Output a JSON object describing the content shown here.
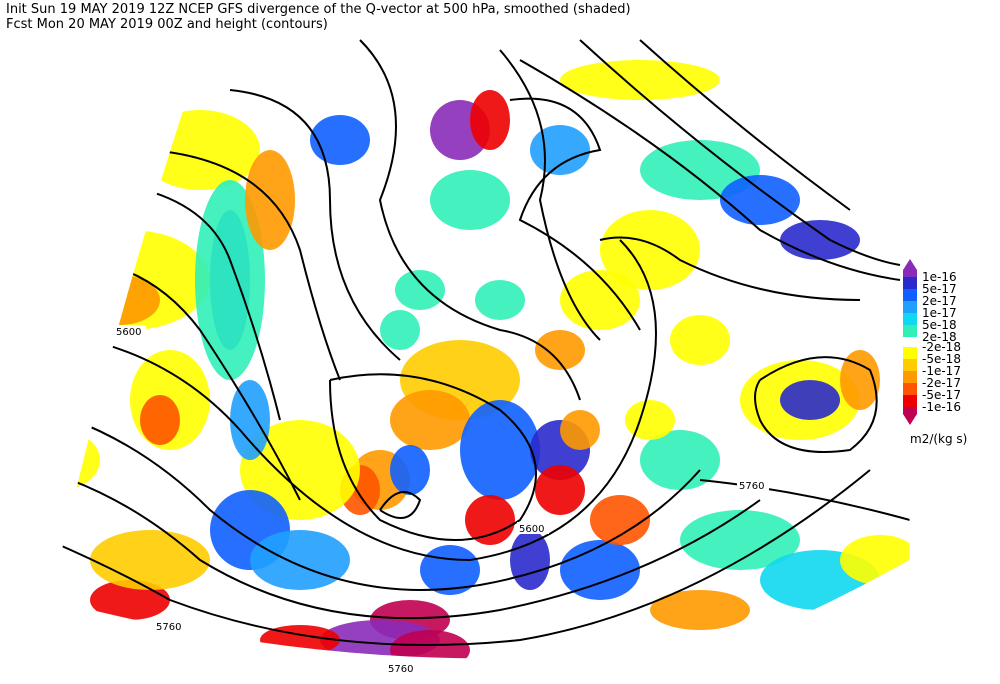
{
  "header": {
    "line1": "Init  Sun 19 MAY 2019 12Z  NCEP GFS divergence of the Q-vector at 500 hPa, smoothed (shaded)",
    "line2": "Fcst Mon 20 MAY 2019 00Z  and height (contours)"
  },
  "legend": {
    "entries": [
      {
        "label": "1e-16",
        "color": "#8a2bb8"
      },
      {
        "label": "5e-17",
        "color": "#2a2acc"
      },
      {
        "label": "2e-17",
        "color": "#1060ff"
      },
      {
        "label": "1e-17",
        "color": "#20a0ff"
      },
      {
        "label": "5e-18",
        "color": "#10d8f0"
      },
      {
        "label": "2e-18",
        "color": "#30f0b8"
      },
      {
        "label": "-2e-18",
        "color": "#ffff00"
      },
      {
        "label": "-5e-18",
        "color": "#ffcc00"
      },
      {
        "label": "-1e-17",
        "color": "#ff9900"
      },
      {
        "label": "-2e-17",
        "color": "#ff5500"
      },
      {
        "label": "-5e-17",
        "color": "#ee0000"
      },
      {
        "label": "-1e-16",
        "color": "#c00050"
      }
    ],
    "units": "m2/(kg s)"
  },
  "contour_labels": [
    "5600",
    "5600",
    "5760",
    "5760",
    "5760"
  ]
}
